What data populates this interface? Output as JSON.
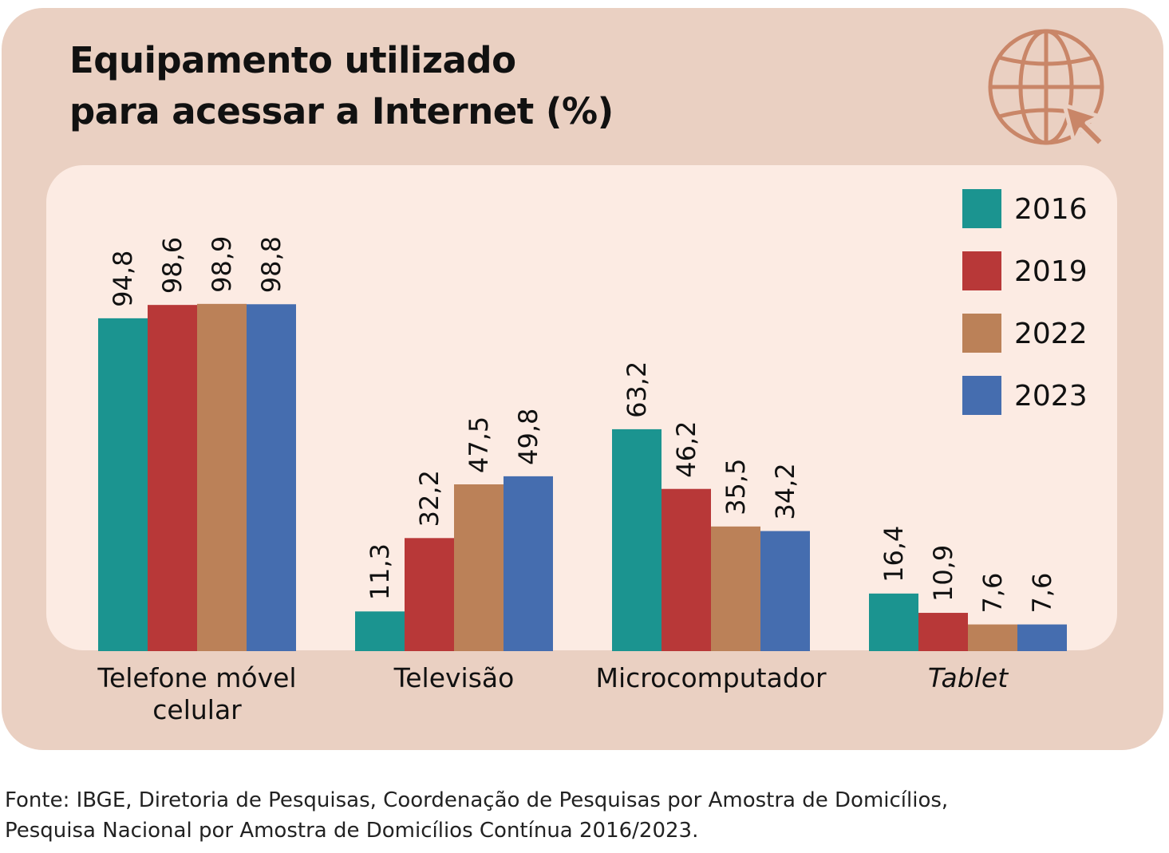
{
  "title_lines": [
    "Equipamento utilizado",
    "para acessar a Internet (%)"
  ],
  "source_lines": [
    "Fonte: IBGE, Diretoria de Pesquisas, Coordenação de Pesquisas por Amostra de Domicílios,",
    "Pesquisa Nacional por Amostra de Domicílios Contínua 2016/2023."
  ],
  "icon": "globe-cursor-icon",
  "colors": {
    "card": "#ead0c2",
    "plot_background": "#fcebe3",
    "icon": "#c98668"
  },
  "chart_data": {
    "type": "bar",
    "title": "Equipamento utilizado para acessar a Internet (%)",
    "categories": [
      {
        "label": [
          "Telefone móvel",
          "celular"
        ],
        "italic": false
      },
      {
        "label": [
          "Televisão"
        ],
        "italic": false
      },
      {
        "label": [
          "Microcomputador"
        ],
        "italic": false
      },
      {
        "label": [
          "Tablet"
        ],
        "italic": true
      }
    ],
    "series": [
      {
        "name": "2016",
        "color": "#1b9490",
        "values": [
          94.8,
          11.3,
          63.2,
          16.4
        ],
        "labels": [
          "94,8",
          "11,3",
          "63,2",
          "16,4"
        ]
      },
      {
        "name": "2019",
        "color": "#b83838",
        "values": [
          98.6,
          32.2,
          46.2,
          10.9
        ],
        "labels": [
          "98,6",
          "32,2",
          "46,2",
          "10,9"
        ]
      },
      {
        "name": "2022",
        "color": "#bb8158",
        "values": [
          98.9,
          47.5,
          35.5,
          7.6
        ],
        "labels": [
          "98,9",
          "47,5",
          "35,5",
          "7,6"
        ]
      },
      {
        "name": "2023",
        "color": "#456daf",
        "values": [
          98.8,
          49.8,
          34.2,
          7.6
        ],
        "labels": [
          "98,8",
          "49,8",
          "34,2",
          "7,6"
        ]
      }
    ],
    "ylim": [
      0,
      100
    ],
    "value_labels": "rotated, above bars",
    "legend_position": "top-right",
    "grid": false
  }
}
